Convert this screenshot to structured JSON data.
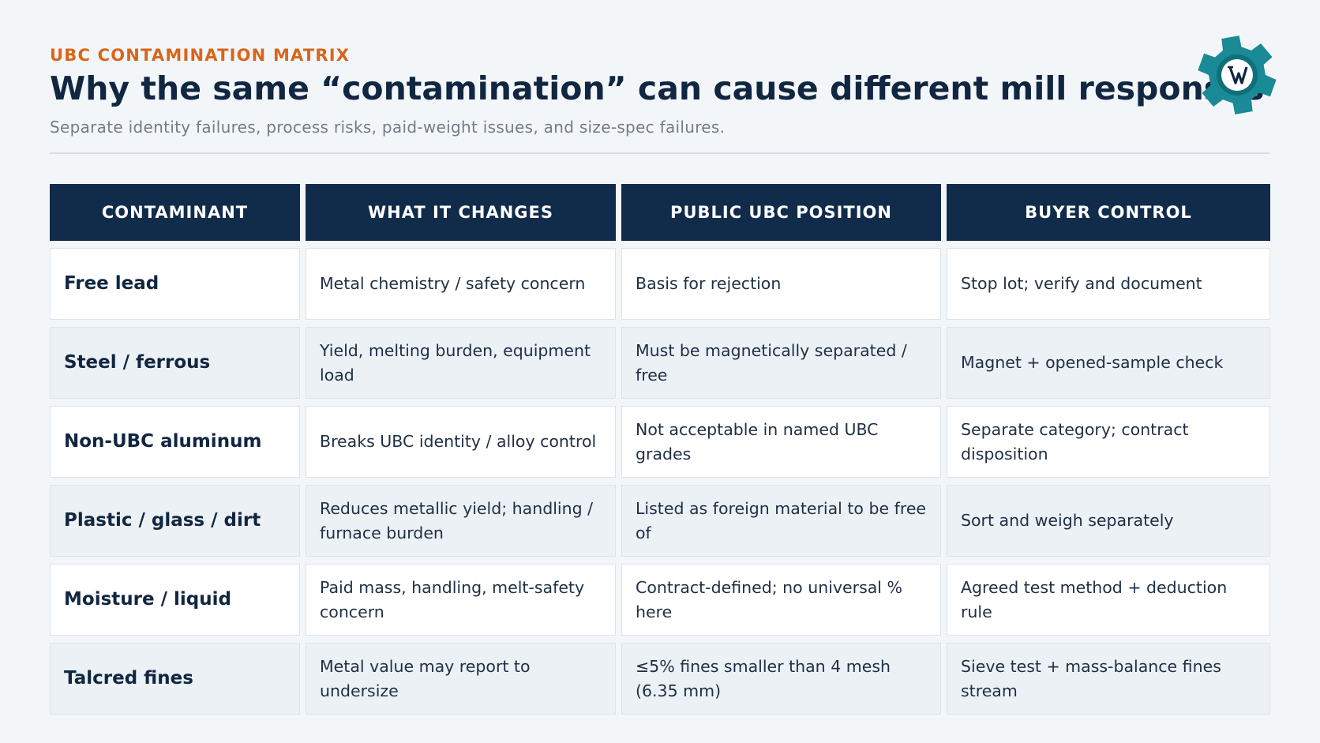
{
  "header": {
    "eyebrow": "UBC CONTAMINATION MATRIX",
    "title": "Why the same “contamination” can cause different mill responses",
    "subtitle": "Separate identity failures, process risks, paid-weight issues, and size-spec failures."
  },
  "logo": {
    "icon": "gear-shield-logo-icon",
    "accent_color": "#1a8a96"
  },
  "colors": {
    "accent": "#d9651b",
    "header_bg": "#112b4a",
    "title": "#112640"
  },
  "table": {
    "columns": [
      "CONTAMINANT",
      "WHAT IT CHANGES",
      "PUBLIC UBC POSITION",
      "BUYER CONTROL"
    ],
    "rows": [
      [
        "Free lead",
        "Metal chemistry / safety concern",
        "Basis for rejection",
        "Stop lot; verify and document"
      ],
      [
        "Steel / ferrous",
        "Yield, melting burden, equipment load",
        "Must be magnetically separated / free",
        "Magnet + opened-sample check"
      ],
      [
        "Non-UBC aluminum",
        "Breaks UBC identity / alloy control",
        "Not acceptable in named UBC grades",
        "Separate category; contract disposition"
      ],
      [
        "Plastic / glass / dirt",
        "Reduces metallic yield; handling / furnace burden",
        "Listed as foreign material to be free of",
        "Sort and weigh separately"
      ],
      [
        "Moisture / liquid",
        "Paid mass, handling, melt-safety concern",
        "Contract-defined; no universal % here",
        "Agreed test method + deduction rule"
      ],
      [
        "Talcred fines",
        "Metal value may report to undersize",
        "≤5% fines smaller than 4 mesh (6.35 mm)",
        "Sieve test + mass-balance fines stream"
      ]
    ]
  }
}
